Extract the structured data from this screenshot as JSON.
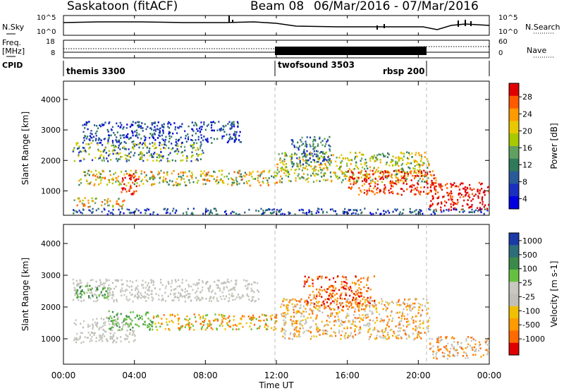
{
  "header": {
    "station": "Saskatoon (fitACF)",
    "beam": "Beam 08",
    "date_range": "06/Mar/2016 - 07/Mar/2016"
  },
  "left_labels": {
    "nsky": "N.Sky",
    "freq_line1": "Freq.",
    "freq_line2": "[MHz]",
    "cpid": "CPID"
  },
  "right_labels": {
    "nsearch": "N.Search",
    "nave": "Nave"
  },
  "chart_data": [
    {
      "type": "line",
      "name": "noise-panel",
      "left_axis_ticks": [
        "10^5",
        "10^0"
      ],
      "right_axis_ticks": [
        "10^5",
        "10^0"
      ],
      "series_labels": [
        "N.Sky",
        "N.Search"
      ]
    },
    {
      "type": "line",
      "name": "frequency-panel",
      "left_axis_ticks": [
        "18",
        "8"
      ],
      "right_axis_ticks": [
        "60",
        "0"
      ],
      "series_labels": [
        "Freq. [MHz]",
        "Nave"
      ]
    },
    {
      "type": "table",
      "name": "cpid-bar",
      "segments": [
        {
          "label": "themis 3300",
          "start_h": 0,
          "end_h": 12
        },
        {
          "label": "twofsound 3503",
          "start_h": 12,
          "end_h": 20.6
        },
        {
          "label": "rbsp 200",
          "start_h": 20.6,
          "end_h": 24
        }
      ]
    },
    {
      "type": "heatmap",
      "name": "power-panel",
      "ylabel": "Slant Range [km]",
      "ylim": [
        200,
        4600
      ],
      "yticks": [
        1000,
        2000,
        3000,
        4000
      ],
      "xlim": [
        0,
        24
      ],
      "colorbar_label": "Power [dB]",
      "colorbar_ticks": [
        "28",
        "24",
        "20",
        "16",
        "12",
        "8",
        "4"
      ],
      "colorbar_colors": [
        "#e00000",
        "#ff5a00",
        "#ff9a00",
        "#e8c800",
        "#a8c800",
        "#60a060",
        "#2e7a5a",
        "#2a5a9a",
        "#1a30c0",
        "#0000e0"
      ]
    },
    {
      "type": "heatmap",
      "name": "velocity-panel",
      "ylabel": "Slant Range [km]",
      "ylim": [
        200,
        4600
      ],
      "yticks": [
        1000,
        2000,
        3000,
        4000
      ],
      "xlim": [
        0,
        24
      ],
      "xticks": [
        "00:00",
        "04:00",
        "08:00",
        "12:00",
        "16:00",
        "20:00",
        "00:00"
      ],
      "xlabel": "Time UT",
      "colorbar_label": "Velocity [m s-1]",
      "colorbar_ticks": [
        "1000",
        "500",
        "100",
        "25",
        "-25",
        "-100",
        "-500",
        "-1000"
      ],
      "colorbar_colors": [
        "#1a3aa8",
        "#2e6e7a",
        "#3c8a4a",
        "#66c040",
        "#c8c8c0",
        "#c0c0b8",
        "#f0c000",
        "#ff9a00",
        "#ff6a00",
        "#e00000"
      ]
    }
  ]
}
